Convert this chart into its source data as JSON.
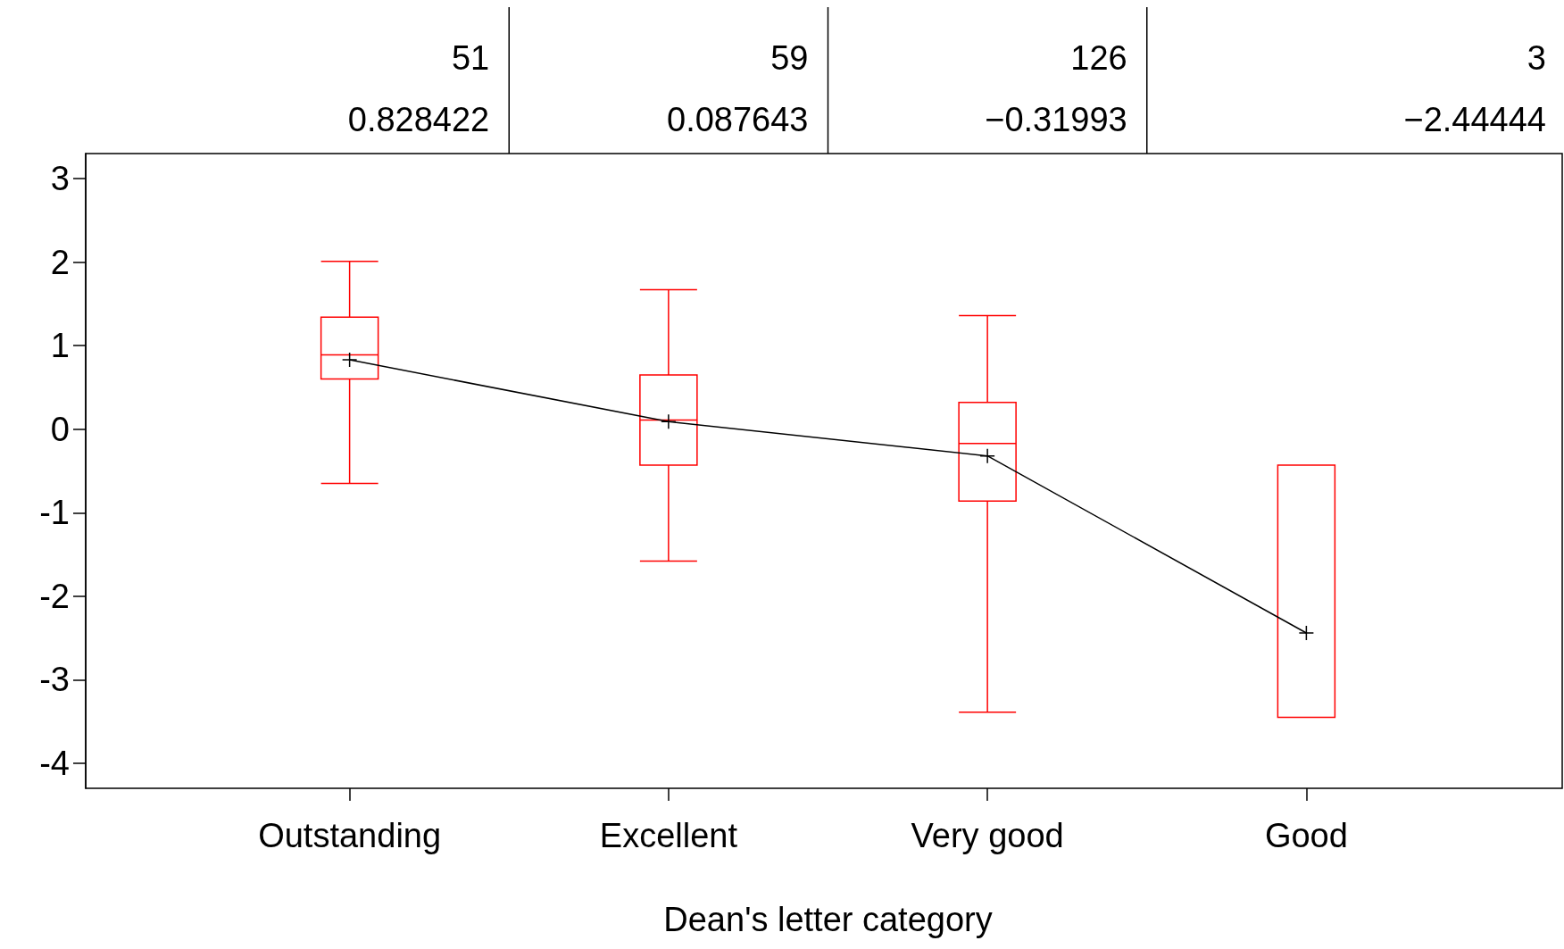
{
  "chart_data": {
    "type": "box",
    "xlabel": "Dean's letter category",
    "categories": [
      "Outstanding",
      "Excellent",
      "Very good",
      "Good"
    ],
    "series": [
      {
        "type": "box",
        "color": "#ff0000",
        "boxes": [
          {
            "low": -0.65,
            "q1": 0.6,
            "median": 0.89,
            "q3": 1.34,
            "high": 2.01
          },
          {
            "low": -1.58,
            "q1": -0.43,
            "median": 0.11,
            "q3": 0.65,
            "high": 1.67
          },
          {
            "low": -3.39,
            "q1": -0.86,
            "median": -0.17,
            "q3": 0.32,
            "high": 1.36
          },
          {
            "low": -3.45,
            "q1": -3.45,
            "median": -3.45,
            "q3": -0.43,
            "high": -0.43
          }
        ]
      },
      {
        "type": "line",
        "color": "#000000",
        "marker": "cross",
        "values": [
          0.83,
          0.09,
          -0.32,
          -2.44
        ]
      }
    ],
    "annotations": [
      "51",
      "59",
      "126",
      "3",
      "0.828422",
      "0.087643",
      "−0.31993",
      "−2.44444"
    ],
    "ylim": [
      -4.3,
      3.3
    ],
    "yticks": [
      -4,
      -3,
      -2,
      -1,
      0,
      1,
      2,
      3
    ],
    "grid": false
  }
}
